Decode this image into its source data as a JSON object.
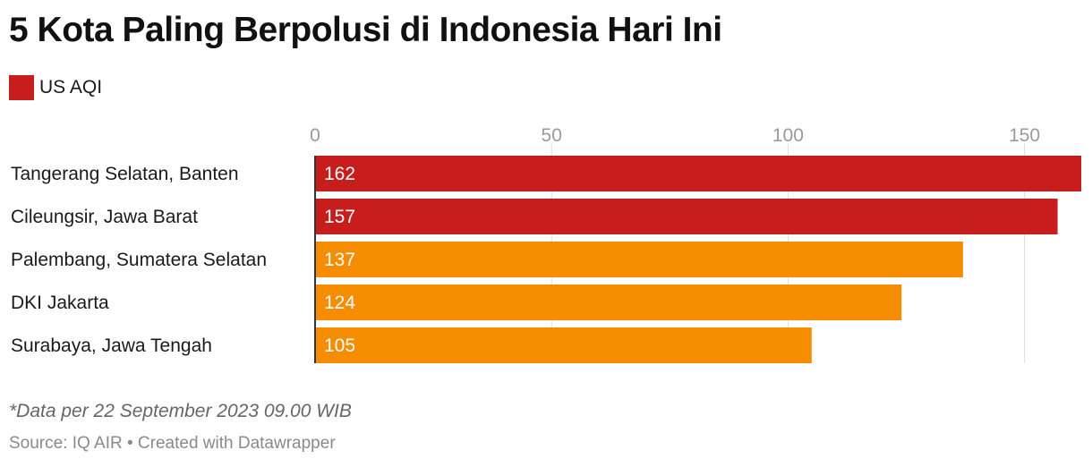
{
  "title": "5 Kota Paling Berpolusi di Indonesia Hari Ini",
  "legend": {
    "label": "US AQI",
    "color": "#c71e1d"
  },
  "note": "*Data per 22 September 2023 09.00 WIB",
  "source": "Source: IQ AIR • Created with Datawrapper",
  "colors": {
    "high": "#c71e1d",
    "medium": "#f68d00",
    "grid": "#dedede",
    "tick_text": "#9a9a9a",
    "value_text": "#ffffff"
  },
  "chart_data": {
    "type": "bar",
    "orientation": "horizontal",
    "categories": [
      "Tangerang Selatan, Banten",
      "Cileungsir, Jawa Barat",
      "Palembang, Sumatera Selatan",
      "DKI Jakarta",
      "Surabaya, Jawa Tengah"
    ],
    "values": [
      162,
      157,
      137,
      124,
      105
    ],
    "bar_colors": [
      "#c71e1d",
      "#c71e1d",
      "#f68d00",
      "#f68d00",
      "#f68d00"
    ],
    "xlim": [
      0,
      162
    ],
    "xticks": [
      0,
      50,
      100,
      150
    ],
    "series": [
      {
        "name": "US AQI",
        "values": [
          162,
          157,
          137,
          124,
          105
        ]
      }
    ],
    "grid": true,
    "legend_position": "top-left"
  }
}
